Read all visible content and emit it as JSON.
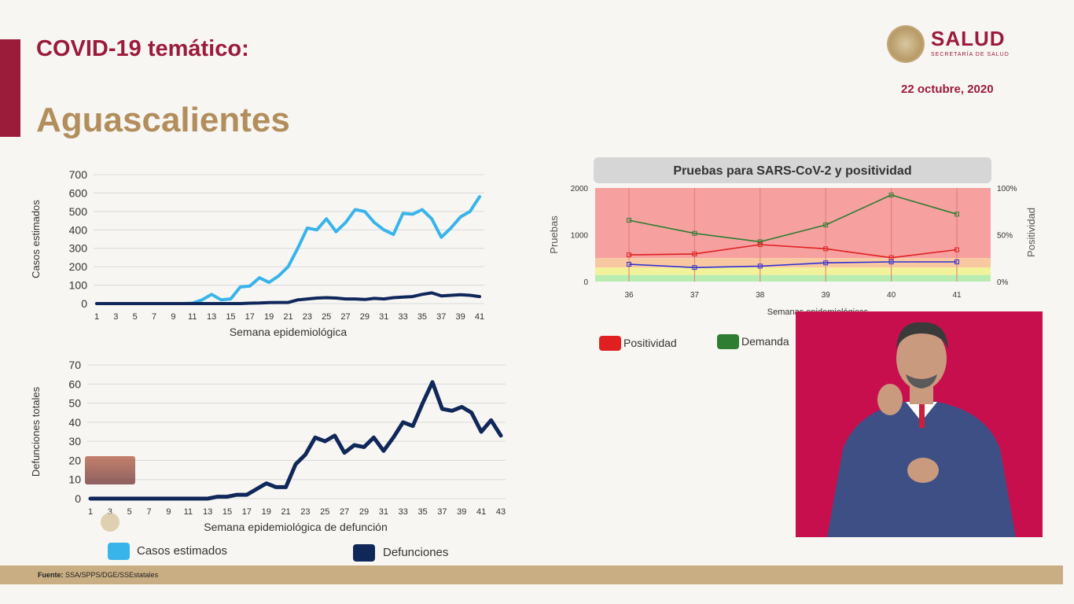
{
  "header": {
    "title": "COVID-19 temático:",
    "region": "Aguascalientes",
    "brand": "SALUD",
    "brand_sub": "SECRETARÍA DE SALUD",
    "date": "22 octubre, 2020"
  },
  "chart_data": [
    {
      "type": "line",
      "id": "casos",
      "ylabel": "Casos estimados",
      "xlabel": "Semana epidemiológica",
      "ylim": [
        0,
        700
      ],
      "yticks": [
        0,
        100,
        200,
        300,
        400,
        500,
        600,
        700
      ],
      "xticks": [
        "1",
        "3",
        "5",
        "7",
        "9",
        "11",
        "13",
        "15",
        "17",
        "19",
        "21",
        "23",
        "25",
        "27",
        "29",
        "31",
        "33",
        "35",
        "37",
        "39",
        "41"
      ],
      "x": [
        1,
        2,
        3,
        4,
        5,
        6,
        7,
        8,
        9,
        10,
        11,
        12,
        13,
        14,
        15,
        16,
        17,
        18,
        19,
        20,
        21,
        22,
        23,
        24,
        25,
        26,
        27,
        28,
        29,
        30,
        31,
        32,
        33,
        34,
        35,
        36,
        37,
        38,
        39,
        40,
        41
      ],
      "series": [
        {
          "name": "Casos estimados",
          "color": "#39b4ea",
          "values": [
            0,
            0,
            0,
            0,
            0,
            0,
            0,
            0,
            0,
            0,
            2,
            20,
            50,
            20,
            25,
            90,
            95,
            140,
            115,
            150,
            200,
            300,
            410,
            400,
            460,
            390,
            440,
            510,
            500,
            440,
            400,
            375,
            490,
            485,
            510,
            460,
            360,
            410,
            470,
            500,
            580
          ]
        },
        {
          "name": "Defunciones",
          "color": "#10275a",
          "values": [
            0,
            0,
            0,
            0,
            0,
            0,
            0,
            0,
            0,
            0,
            0,
            0,
            0,
            0,
            0,
            0,
            2,
            3,
            5,
            6,
            6,
            20,
            25,
            30,
            32,
            30,
            25,
            25,
            22,
            28,
            25,
            32,
            35,
            38,
            50,
            58,
            42,
            45,
            48,
            45,
            38
          ]
        }
      ]
    },
    {
      "type": "line",
      "id": "defunciones",
      "ylabel": "Defunciones totales",
      "xlabel": "Semana epidemiológica de defunción",
      "ylim": [
        0,
        70
      ],
      "yticks": [
        0,
        10,
        20,
        30,
        40,
        50,
        60,
        70
      ],
      "xticks": [
        "1",
        "3",
        "5",
        "7",
        "9",
        "11",
        "13",
        "15",
        "17",
        "19",
        "21",
        "23",
        "25",
        "27",
        "29",
        "31",
        "33",
        "35",
        "37",
        "39",
        "41",
        "43"
      ],
      "x": [
        1,
        2,
        3,
        4,
        5,
        6,
        7,
        8,
        9,
        10,
        11,
        12,
        13,
        14,
        15,
        16,
        17,
        18,
        19,
        20,
        21,
        22,
        23,
        24,
        25,
        26,
        27,
        28,
        29,
        30,
        31,
        32,
        33,
        34,
        35,
        36,
        37,
        38,
        39,
        40,
        41,
        42,
        43
      ],
      "series": [
        {
          "name": "Defunciones",
          "color": "#10275a",
          "values": [
            0,
            0,
            0,
            0,
            0,
            0,
            0,
            0,
            0,
            0,
            0,
            0,
            0,
            1,
            1,
            2,
            2,
            5,
            8,
            6,
            6,
            18,
            23,
            32,
            30,
            33,
            24,
            28,
            27,
            32,
            25,
            32,
            40,
            38,
            50,
            61,
            47,
            46,
            48,
            45,
            35,
            41,
            33
          ]
        }
      ]
    },
    {
      "type": "line",
      "id": "pruebas",
      "title": "Pruebas para SARS-CoV-2 y positividad",
      "xlabel": "Semanas epidemiológicas",
      "ylabel": "Pruebas",
      "y2label": "Positividad",
      "ylim": [
        0,
        2000
      ],
      "yticks": [
        "0",
        "1000",
        "2000"
      ],
      "y2ticks": [
        "0%",
        "50%",
        "100%"
      ],
      "x": [
        36,
        37,
        38,
        39,
        40,
        41
      ],
      "xticks": [
        "36",
        "37",
        "38",
        "39",
        "40",
        "41"
      ],
      "series": [
        {
          "name": "Demanda",
          "color": "#2e7d32",
          "values": [
            1310,
            1030,
            850,
            1210,
            1850,
            1440
          ]
        },
        {
          "name": "Positividad",
          "color": "#e02020",
          "values": [
            570,
            590,
            790,
            700,
            510,
            680
          ]
        },
        {
          "name": "Pruebas",
          "color": "#3030d0",
          "values": [
            370,
            300,
            330,
            400,
            420,
            420
          ]
        }
      ],
      "legend": [
        {
          "label": "Positividad",
          "color": "#e02020"
        },
        {
          "label": "Demanda",
          "color": "#2e7d32"
        }
      ]
    }
  ],
  "bottom_legend": [
    {
      "label": "Casos estimados",
      "color": "#39b4ea"
    },
    {
      "label": "Defunciones",
      "color": "#10275a"
    }
  ],
  "footer": {
    "label": "Fuente:",
    "text": "SSA/SPPS/DGE/SSEstatales"
  }
}
